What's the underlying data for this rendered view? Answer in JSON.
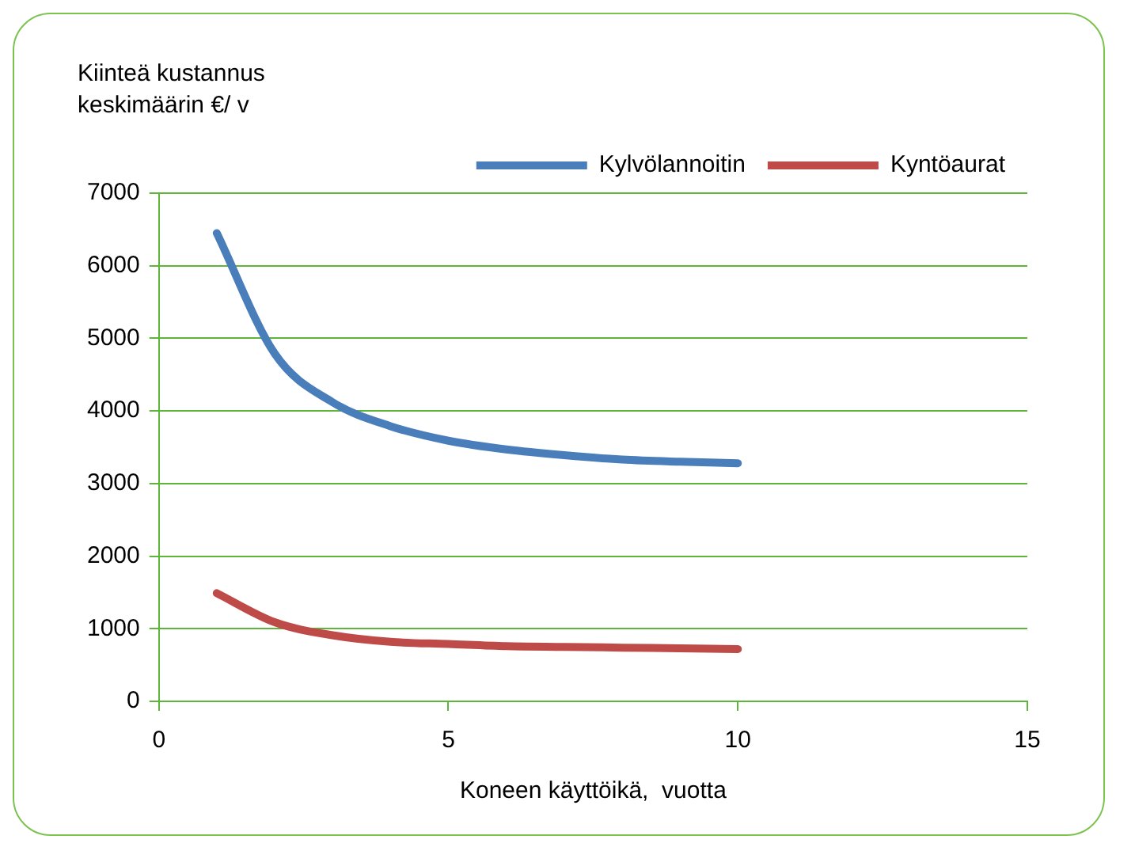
{
  "chart_data": {
    "type": "line",
    "ylabel": "Kiinteä kustannus keskimäärin  €/ v",
    "xlabel": "Koneen käyttöikä,  vuotta",
    "x": [
      1,
      2,
      3,
      4,
      5,
      6,
      7,
      8,
      9,
      10
    ],
    "series": [
      {
        "name": "Kylvölannoitin",
        "color": "#4a7ebb",
        "values": [
          6450,
          4790,
          4120,
          3790,
          3590,
          3470,
          3390,
          3330,
          3300,
          3280
        ]
      },
      {
        "name": "Kyntöaurat",
        "color": "#be4b48",
        "values": [
          1490,
          1090,
          910,
          820,
          790,
          760,
          750,
          740,
          730,
          720
        ]
      }
    ],
    "xlim": [
      0,
      15
    ],
    "xticks": [
      0,
      5,
      10,
      15
    ],
    "ylim": [
      0,
      7000
    ],
    "yticks": [
      0,
      1000,
      2000,
      3000,
      4000,
      5000,
      6000,
      7000
    ],
    "grid": "y",
    "legend": "top right",
    "marker": "none",
    "line_style": "solid"
  }
}
